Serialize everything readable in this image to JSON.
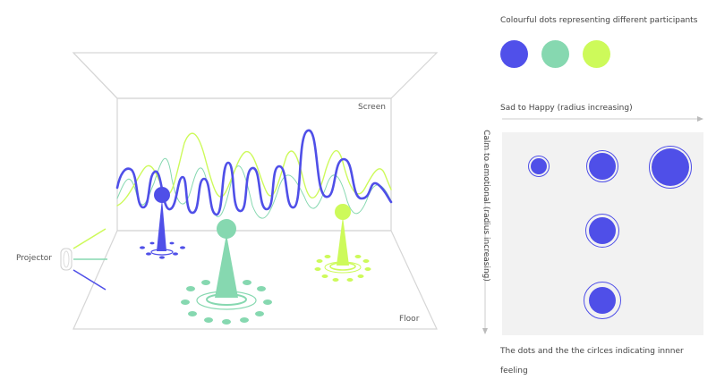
{
  "scene": {
    "screen_label": "Screen",
    "floor_label": "Floor",
    "projector_label": "Projector"
  },
  "legend": {
    "title": "Colourful dots representing different participants",
    "dots": [
      {
        "name": "participant-blue",
        "color": "#5050ea"
      },
      {
        "name": "participant-green",
        "color": "#86d8b0"
      },
      {
        "name": "participant-lime",
        "color": "#cdfa5a"
      }
    ]
  },
  "axes": {
    "x_label": "Sad to Happy (radius increasing)",
    "y_label": "Calm to emotional (radius increasing)"
  },
  "caption": {
    "line1": "The dots and the the cirlces indicating innner",
    "line2": "feeling"
  },
  "colors": {
    "blue": "#4f4fe8",
    "green": "#86d8b0",
    "lime": "#cdfa5a",
    "room_line": "#d6d6d6",
    "panel_bg": "#f2f2f2"
  }
}
